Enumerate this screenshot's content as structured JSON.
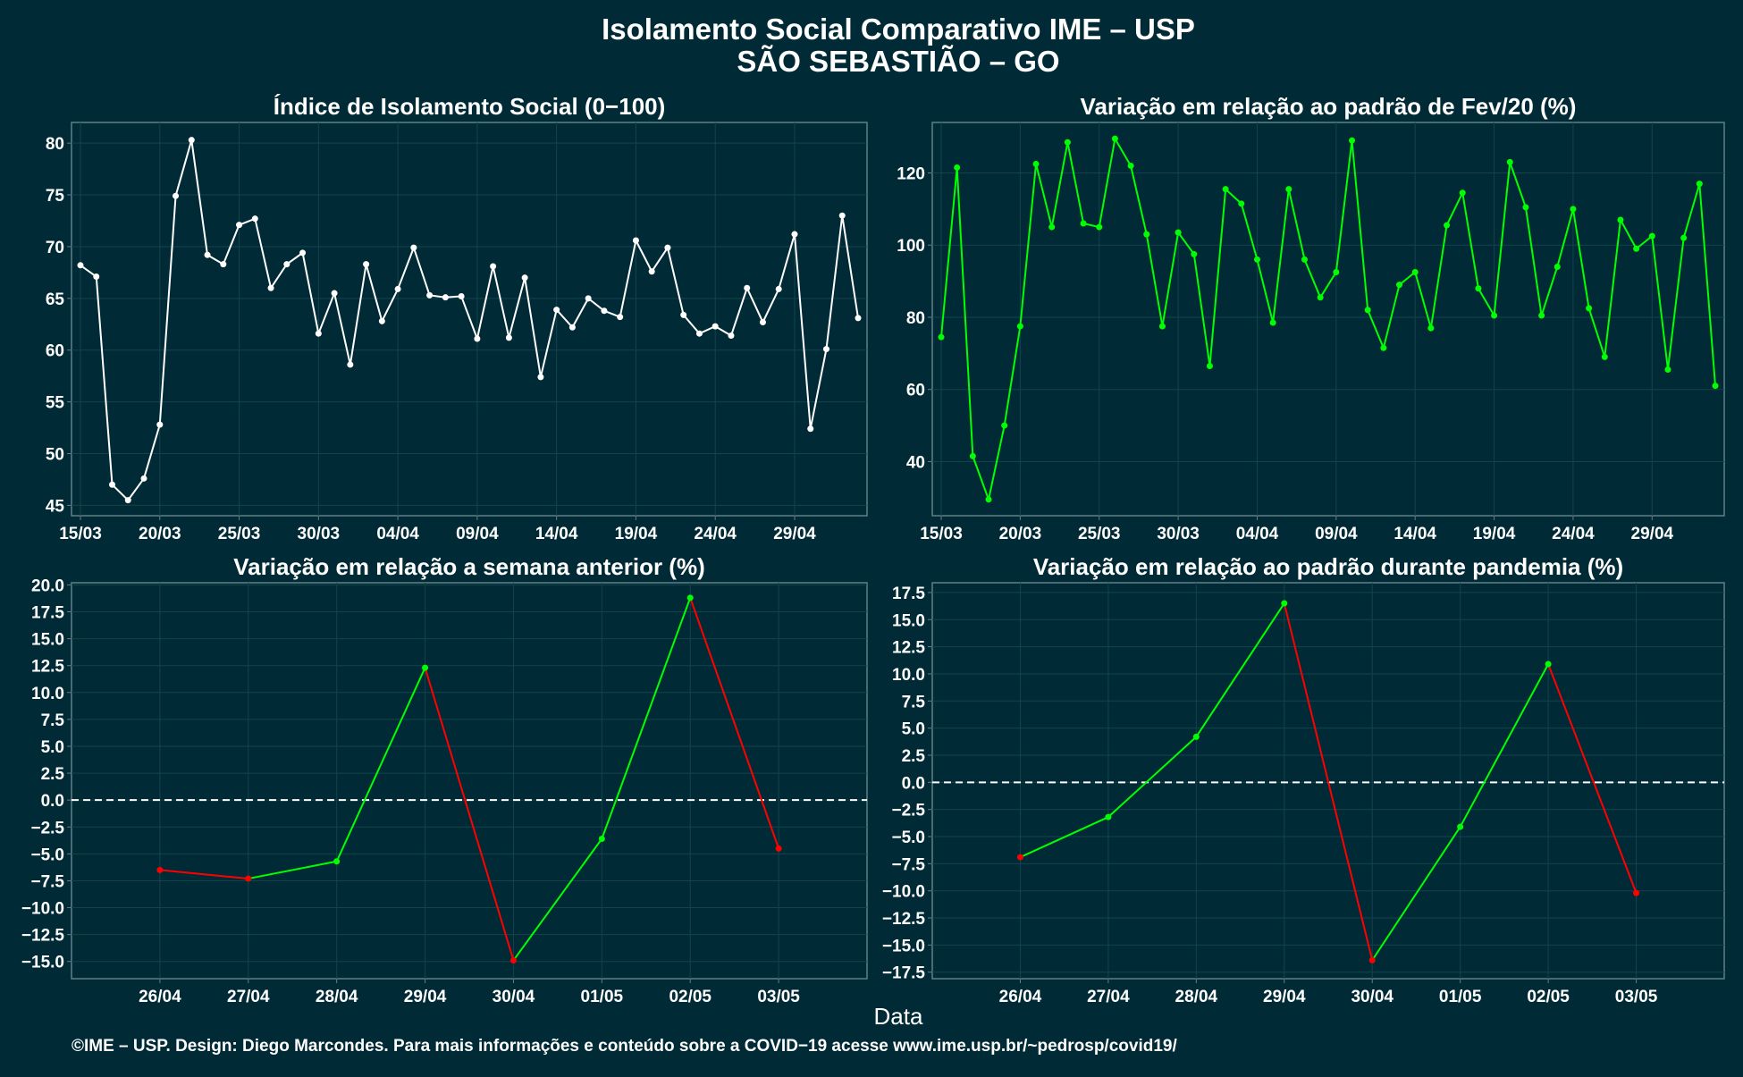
{
  "title": "Isolamento Social Comparativo IME – USP",
  "subtitle": "SÃO SEBASTIÃO – GO",
  "xlabel": "Data",
  "footer": "©IME – USP. Design: Diego Marcondes. Para mais informações e conteúdo sobre a COVID−19 acesse www.ime.usp.br/~pedrosp/covid19/",
  "colors": {
    "background": "#002b36",
    "panel_border": "#5f7f87",
    "grid": "#14434c",
    "white": "#ffffff",
    "green": "#00ff00",
    "red": "#ff0000",
    "text": "#ffffff"
  },
  "chart_data": [
    {
      "type": "line",
      "title": "Índice de Isolamento Social (0−100)",
      "dates": [
        "15/03",
        "16/03",
        "17/03",
        "18/03",
        "19/03",
        "20/03",
        "21/03",
        "22/03",
        "23/03",
        "24/03",
        "25/03",
        "26/03",
        "27/03",
        "28/03",
        "29/03",
        "30/03",
        "31/03",
        "01/04",
        "02/04",
        "03/04",
        "04/04",
        "05/04",
        "06/04",
        "07/04",
        "08/04",
        "09/04",
        "10/04",
        "11/04",
        "12/04",
        "13/04",
        "14/04",
        "15/04",
        "16/04",
        "17/04",
        "18/04",
        "19/04",
        "20/04",
        "21/04",
        "22/04",
        "23/04",
        "24/04",
        "25/04",
        "26/04",
        "27/04",
        "28/04",
        "29/04",
        "30/04",
        "01/05",
        "02/05",
        "03/05"
      ],
      "values": [
        68.2,
        67.1,
        47.0,
        45.5,
        47.6,
        52.8,
        74.9,
        80.3,
        69.2,
        68.3,
        72.1,
        72.7,
        66.0,
        68.3,
        69.4,
        61.6,
        65.5,
        58.6,
        68.3,
        62.8,
        65.9,
        69.9,
        65.3,
        65.1,
        65.2,
        61.1,
        68.1,
        61.2,
        67.0,
        57.4,
        63.9,
        62.2,
        65.0,
        63.8,
        63.2,
        70.6,
        67.6,
        69.9,
        63.4,
        61.6,
        62.3,
        61.4,
        66.0,
        62.7,
        65.9,
        71.2,
        52.4,
        60.1,
        73.0,
        63.1
      ],
      "x_ticks": [
        "15/03",
        "20/03",
        "25/03",
        "30/03",
        "04/04",
        "09/04",
        "14/04",
        "19/04",
        "24/04",
        "29/04"
      ],
      "y_ticks": [
        45,
        50,
        55,
        60,
        65,
        70,
        75,
        80
      ],
      "ylim": [
        44,
        82
      ],
      "color": "#ffffff"
    },
    {
      "type": "line",
      "title": "Variação em relação ao padrão de Fev/20 (%)",
      "dates": [
        "15/03",
        "16/03",
        "17/03",
        "18/03",
        "19/03",
        "20/03",
        "21/03",
        "22/03",
        "23/03",
        "24/03",
        "25/03",
        "26/03",
        "27/03",
        "28/03",
        "29/03",
        "30/03",
        "31/03",
        "01/04",
        "02/04",
        "03/04",
        "04/04",
        "05/04",
        "06/04",
        "07/04",
        "08/04",
        "09/04",
        "10/04",
        "11/04",
        "12/04",
        "13/04",
        "14/04",
        "15/04",
        "16/04",
        "17/04",
        "18/04",
        "19/04",
        "20/04",
        "21/04",
        "22/04",
        "23/04",
        "24/04",
        "25/04",
        "26/04",
        "27/04",
        "28/04",
        "29/04",
        "30/04",
        "01/05",
        "02/05",
        "03/05"
      ],
      "values": [
        74.5,
        121.5,
        41.5,
        29.5,
        50.0,
        77.5,
        122.5,
        105.0,
        128.5,
        106.0,
        105.0,
        129.5,
        122.0,
        103.0,
        77.5,
        103.5,
        97.5,
        66.5,
        115.5,
        111.5,
        96.0,
        78.5,
        115.5,
        96.0,
        85.5,
        92.5,
        129.0,
        82.0,
        71.5,
        89.0,
        92.5,
        77.0,
        105.5,
        114.5,
        88.0,
        80.5,
        123.0,
        110.5,
        80.5,
        94.0,
        110.0,
        82.5,
        69.0,
        107.0,
        99.0,
        102.5,
        65.5,
        102.0,
        117.0,
        61.0
      ],
      "x_ticks": [
        "15/03",
        "20/03",
        "25/03",
        "30/03",
        "04/04",
        "09/04",
        "14/04",
        "19/04",
        "24/04",
        "29/04"
      ],
      "y_ticks": [
        40,
        60,
        80,
        100,
        120
      ],
      "ylim": [
        25,
        134
      ],
      "color": "#00ff00"
    },
    {
      "type": "line",
      "title": "Variação em relação a semana anterior (%)",
      "dates": [
        "26/04",
        "27/04",
        "28/04",
        "29/04",
        "30/04",
        "01/05",
        "02/05",
        "03/05"
      ],
      "values": [
        -6.5,
        -7.3,
        -5.7,
        12.3,
        -14.9,
        -3.6,
        18.8,
        -4.5
      ],
      "y_ticks": [
        20.0,
        17.5,
        15.0,
        12.5,
        10.0,
        7.5,
        5.0,
        2.5,
        0.0,
        -2.5,
        -5.0,
        -7.5,
        -10.0,
        -12.5,
        -15.0
      ],
      "ylim": [
        -16.6,
        20.2
      ],
      "reference_line": 0
    },
    {
      "type": "line",
      "title": "Variação em relação ao padrão durante pandemia (%)",
      "dates": [
        "26/04",
        "27/04",
        "28/04",
        "29/04",
        "30/04",
        "01/05",
        "02/05",
        "03/05"
      ],
      "values": [
        -6.9,
        -3.2,
        4.2,
        16.5,
        -16.4,
        -4.1,
        10.9,
        -10.2
      ],
      "y_ticks": [
        17.5,
        15.0,
        12.5,
        10.0,
        7.5,
        5.0,
        2.5,
        0.0,
        -2.5,
        -5.0,
        -7.5,
        -10.0,
        -12.5,
        -15.0,
        -17.5
      ],
      "ylim": [
        -18.1,
        18.4
      ],
      "reference_line": 0
    }
  ]
}
